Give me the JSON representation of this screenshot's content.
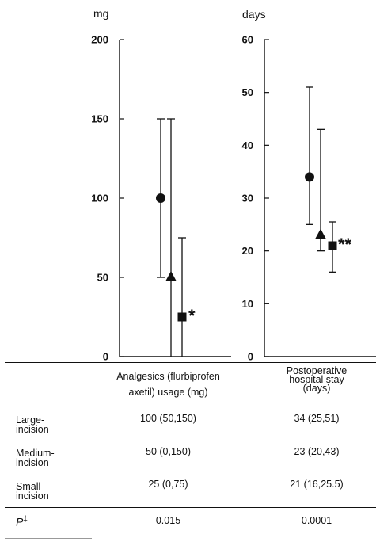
{
  "chart_data": [
    {
      "type": "scatter",
      "ylabel": "mg",
      "ylim": [
        0,
        200
      ],
      "yticks": [
        0,
        50,
        100,
        150,
        200
      ],
      "series": [
        {
          "marker": "circle",
          "value": 100,
          "low": 50,
          "high": 150
        },
        {
          "marker": "triangle",
          "value": 50,
          "low": 0,
          "high": 150
        },
        {
          "marker": "square",
          "value": 25,
          "low": 0,
          "high": 75,
          "annotation": "*"
        }
      ]
    },
    {
      "type": "scatter",
      "ylabel": "days",
      "ylim": [
        0,
        60
      ],
      "yticks": [
        0,
        10,
        20,
        30,
        40,
        50,
        60
      ],
      "series": [
        {
          "marker": "circle",
          "value": 34,
          "low": 25,
          "high": 51
        },
        {
          "marker": "triangle",
          "value": 23,
          "low": 20,
          "high": 43
        },
        {
          "marker": "square",
          "value": 21,
          "low": 16,
          "high": 25.5,
          "annotation": "**"
        }
      ]
    }
  ],
  "table": {
    "columns": [
      {
        "line1": "Analgesics (flurbiprofen",
        "line2": "axetil) usage (mg)"
      },
      {
        "line1": "Postoperative",
        "line2": "hospital stay",
        "line3": "(days)"
      }
    ],
    "rows": [
      {
        "label1": "Large-",
        "label2": "incision",
        "col1": "100 (50,150)",
        "col2": "34 (25,51)"
      },
      {
        "label1": "Medium-",
        "label2": "incision",
        "col1": "50 (0,150)",
        "col2": "23 (20,43)"
      },
      {
        "label1": "Small-",
        "label2": "incision",
        "col1": "25 (0,75)",
        "col2": "21 (16,25.5)"
      }
    ],
    "p_row": {
      "label": "P",
      "mark": "‡",
      "col1": "0.015",
      "col2": "0.0001"
    }
  }
}
